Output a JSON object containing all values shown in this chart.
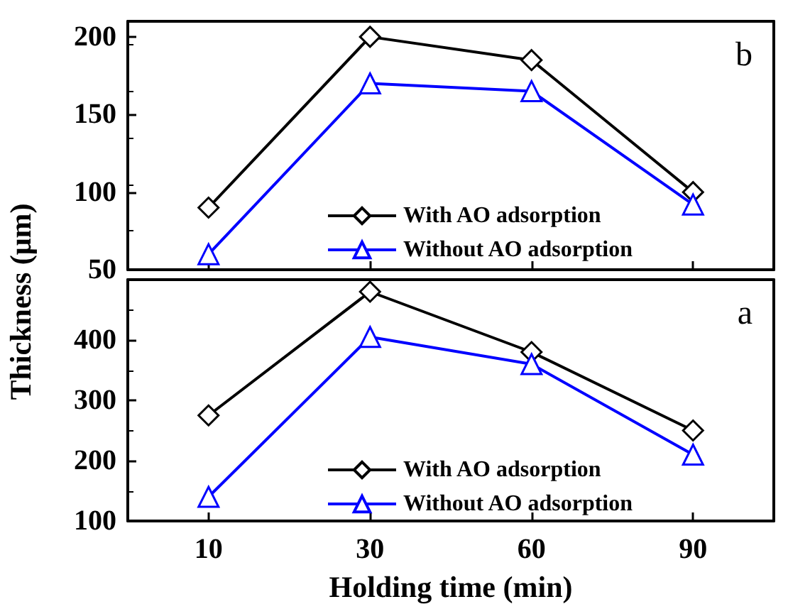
{
  "chart_data": [
    {
      "type": "line",
      "ylabel": "Thickness  (μm)",
      "annotations": [
        "b"
      ],
      "categories": [
        "10",
        "30",
        "60",
        "90"
      ],
      "series": [
        {
          "name": "With AO adsorption",
          "color": "#000000",
          "marker": "diamond",
          "values": [
            90,
            200,
            185,
            100
          ]
        },
        {
          "name": "Without AO adsorption",
          "color": "#0000ff",
          "marker": "triangle",
          "values": [
            60,
            170,
            165,
            92
          ]
        }
      ],
      "ylim": [
        50,
        210
      ],
      "yticks": [
        50,
        100,
        150,
        200
      ],
      "tick_labels": "y",
      "legend": "bottom",
      "grid": false
    },
    {
      "type": "line",
      "xlabel": "Holding time (min)",
      "annotations": [
        "a"
      ],
      "categories": [
        "10",
        "30",
        "60",
        "90"
      ],
      "series": [
        {
          "name": "With AO adsorption",
          "color": "#000000",
          "marker": "diamond",
          "values": [
            275,
            480,
            380,
            250
          ]
        },
        {
          "name": "Without AO adsorption",
          "color": "#0000ff",
          "marker": "triangle",
          "values": [
            140,
            405,
            360,
            210
          ]
        }
      ],
      "ylim": [
        100,
        500
      ],
      "yticks": [
        100,
        200,
        300,
        400
      ],
      "legend": "bottom",
      "grid": false
    }
  ]
}
